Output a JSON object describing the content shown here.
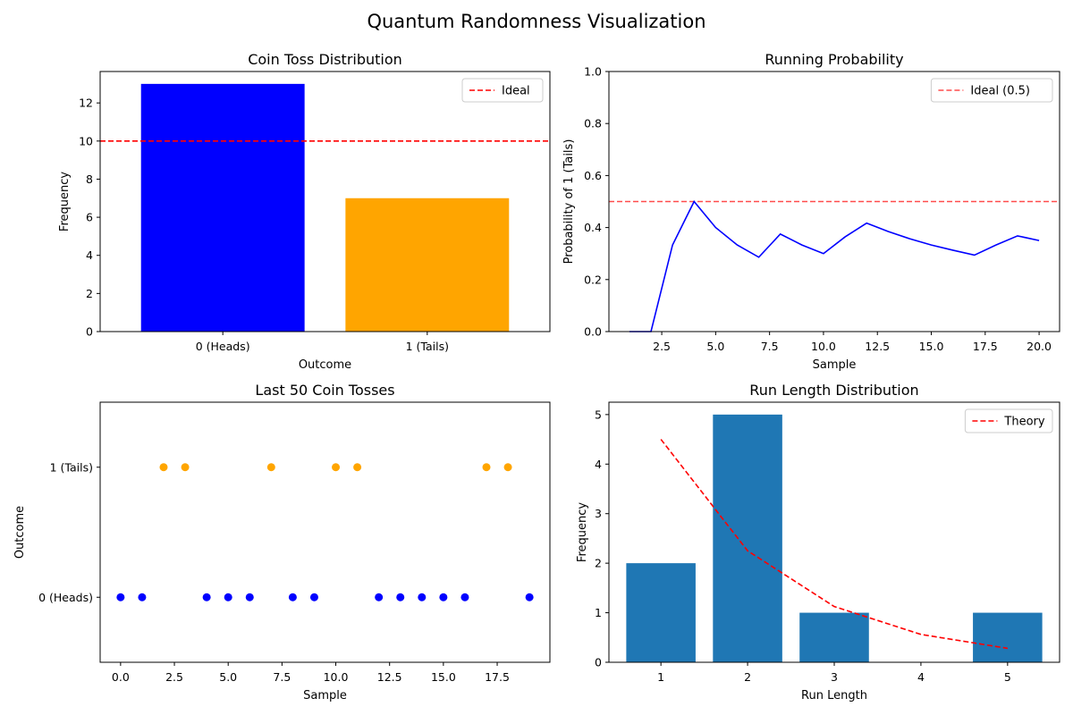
{
  "figure": {
    "title": "Quantum Randomness Visualization"
  },
  "chart_data": [
    {
      "id": "coin_toss_distribution",
      "type": "bar",
      "title": "Coin Toss Distribution",
      "xlabel": "Outcome",
      "ylabel": "Frequency",
      "categories": [
        "0 (Heads)",
        "1 (Tails)"
      ],
      "values": [
        13,
        7
      ],
      "colors": [
        "#0000ff",
        "#ffa500"
      ],
      "ylim": [
        0,
        13.65
      ],
      "yticks": [
        0,
        2,
        4,
        6,
        8,
        10,
        12
      ],
      "reference_line": {
        "name": "Ideal",
        "y": 10,
        "color": "#ff0000",
        "style": "dashed"
      },
      "legend": {
        "position": "top-right",
        "entries": [
          "Ideal"
        ]
      },
      "grid": false
    },
    {
      "id": "running_probability",
      "type": "line",
      "title": "Running Probability",
      "xlabel": "Sample",
      "ylabel": "Probability of 1 (Tails)",
      "x": [
        1,
        2,
        3,
        4,
        5,
        6,
        7,
        8,
        9,
        10,
        11,
        12,
        13,
        14,
        15,
        16,
        17,
        18,
        19,
        20
      ],
      "series": [
        {
          "values": [
            0,
            0,
            0.333,
            0.5,
            0.4,
            0.333,
            0.286,
            0.375,
            0.333,
            0.3,
            0.364,
            0.417,
            0.385,
            0.357,
            0.333,
            0.313,
            0.294,
            0.333,
            0.368,
            0.35
          ],
          "color": "#0000ff"
        }
      ],
      "xlim": [
        0.05,
        20.95
      ],
      "ylim": [
        0,
        1
      ],
      "xticks": [
        2.5,
        5.0,
        7.5,
        10.0,
        12.5,
        15.0,
        17.5,
        20.0
      ],
      "xtick_labels": [
        "2.5",
        "5.0",
        "7.5",
        "10.0",
        "12.5",
        "15.0",
        "17.5",
        "20.0"
      ],
      "yticks": [
        0.0,
        0.2,
        0.4,
        0.6,
        0.8,
        1.0
      ],
      "ytick_labels": [
        "0.0",
        "0.2",
        "0.4",
        "0.6",
        "0.8",
        "1.0"
      ],
      "reference_line": {
        "name": "Ideal (0.5)",
        "y": 0.5,
        "color": "#ff0000",
        "style": "dashed",
        "alpha": 0.7
      },
      "legend": {
        "position": "top-right",
        "entries": [
          "Ideal (0.5)"
        ]
      },
      "grid": false
    },
    {
      "id": "last_50_coin_tosses",
      "type": "scatter",
      "title": "Last 50 Coin Tosses",
      "xlabel": "Sample",
      "ylabel": "Outcome",
      "x": [
        0,
        1,
        2,
        3,
        4,
        5,
        6,
        7,
        8,
        9,
        10,
        11,
        12,
        13,
        14,
        15,
        16,
        17,
        18,
        19
      ],
      "y": [
        0,
        0,
        1,
        1,
        0,
        0,
        0,
        1,
        0,
        0,
        1,
        1,
        0,
        0,
        0,
        0,
        0,
        1,
        1,
        0
      ],
      "point_colors": {
        "0": "#0000ff",
        "1": "#ffa500"
      },
      "xlim": [
        -0.95,
        19.95
      ],
      "ylim": [
        -0.5,
        1.5
      ],
      "xticks": [
        0,
        2.5,
        5,
        7.5,
        10,
        12.5,
        15,
        17.5
      ],
      "xtick_labels": [
        "0.0",
        "2.5",
        "5.0",
        "7.5",
        "10.0",
        "12.5",
        "15.0",
        "17.5"
      ],
      "yticks": [
        0,
        1
      ],
      "ytick_labels": [
        "0 (Heads)",
        "1 (Tails)"
      ],
      "grid": false
    },
    {
      "id": "run_length_distribution",
      "type": "bar",
      "title": "Run Length Distribution",
      "xlabel": "Run Length",
      "ylabel": "Frequency",
      "categories": [
        1,
        2,
        3,
        4,
        5
      ],
      "values": [
        2,
        5,
        1,
        0,
        1
      ],
      "bar_color": "#1f77b4",
      "theory": {
        "name": "Theory",
        "x": [
          1,
          2,
          3,
          4,
          5
        ],
        "y": [
          4.5,
          2.25,
          1.125,
          0.5625,
          0.28125
        ],
        "color": "#ff0000",
        "style": "dashed"
      },
      "xlim": [
        0.4,
        5.6
      ],
      "ylim": [
        0,
        5.25
      ],
      "yticks": [
        0,
        1,
        2,
        3,
        4,
        5
      ],
      "legend": {
        "position": "top-right",
        "entries": [
          "Theory"
        ]
      },
      "grid": false
    }
  ]
}
